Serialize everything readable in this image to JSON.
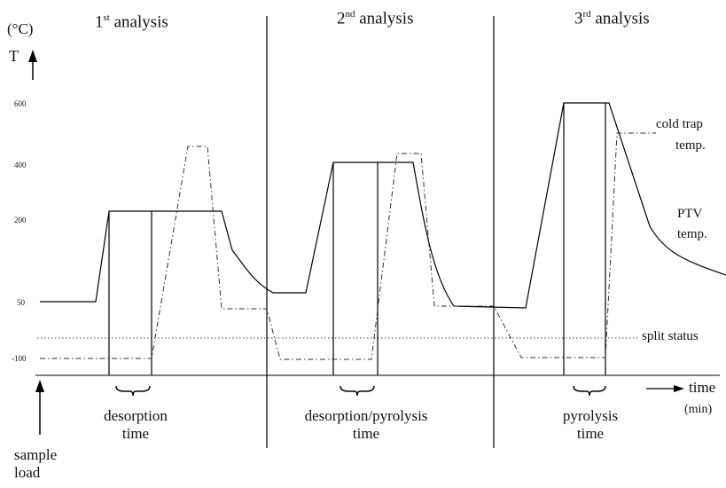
{
  "headers": {
    "first": {
      "num": "1",
      "sup": "st",
      "rest": " analysis"
    },
    "second": {
      "num": "2",
      "sup": "nd",
      "rest": " analysis"
    },
    "third": {
      "num": "3",
      "sup": "rd",
      "rest": " analysis"
    }
  },
  "axis": {
    "unit": "(°C)",
    "label": "T",
    "ticks": [
      "600",
      "400",
      "200",
      "50",
      "-100"
    ],
    "time_label": "time",
    "time_unit": "(min)"
  },
  "curves": {
    "cold_trap_line1": "cold trap",
    "cold_trap_line2": "temp.",
    "ptv_line1": "PTV",
    "ptv_line2": "temp.",
    "split": "split status"
  },
  "bottom": {
    "desorption_1": "desorption",
    "desorption_2": "time",
    "despyro_1": "desorption/pyrolysis",
    "despyro_2": "time",
    "pyro_1": "pyrolysis",
    "pyro_2": "time",
    "sample_1": "sample",
    "sample_2": "load"
  }
}
